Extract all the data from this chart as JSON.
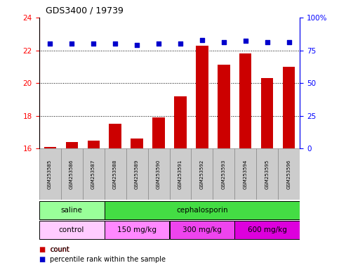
{
  "title": "GDS3400 / 19739",
  "samples": [
    "GSM253585",
    "GSM253586",
    "GSM253587",
    "GSM253588",
    "GSM253589",
    "GSM253590",
    "GSM253591",
    "GSM253592",
    "GSM253593",
    "GSM253594",
    "GSM253595",
    "GSM253596"
  ],
  "bar_values": [
    16.1,
    16.4,
    16.5,
    17.5,
    16.6,
    17.9,
    19.2,
    22.3,
    21.1,
    21.8,
    20.3,
    21.0
  ],
  "percentile_values": [
    80,
    80,
    80,
    80,
    79,
    80,
    80,
    83,
    81,
    82,
    81,
    81
  ],
  "bar_color": "#cc0000",
  "dot_color": "#0000cc",
  "ylim_left": [
    16,
    24
  ],
  "ylim_right": [
    0,
    100
  ],
  "yticks_left": [
    16,
    18,
    20,
    22,
    24
  ],
  "yticks_right": [
    0,
    25,
    50,
    75,
    100
  ],
  "ytick_labels_right": [
    "0",
    "25",
    "50",
    "75",
    "100%"
  ],
  "grid_values": [
    18,
    20,
    22
  ],
  "agent_groups": [
    {
      "text": "saline",
      "start": 0,
      "end": 2,
      "color": "#99ff99"
    },
    {
      "text": "cephalosporin",
      "start": 3,
      "end": 11,
      "color": "#44dd44"
    }
  ],
  "dose_groups": [
    {
      "text": "control",
      "start": 0,
      "end": 2,
      "color": "#ffccff"
    },
    {
      "text": "150 mg/kg",
      "start": 3,
      "end": 5,
      "color": "#ff88ff"
    },
    {
      "text": "300 mg/kg",
      "start": 6,
      "end": 8,
      "color": "#ee44ee"
    },
    {
      "text": "600 mg/kg",
      "start": 9,
      "end": 11,
      "color": "#dd00dd"
    }
  ],
  "tick_area_color": "#cccccc",
  "background_color": "#ffffff"
}
